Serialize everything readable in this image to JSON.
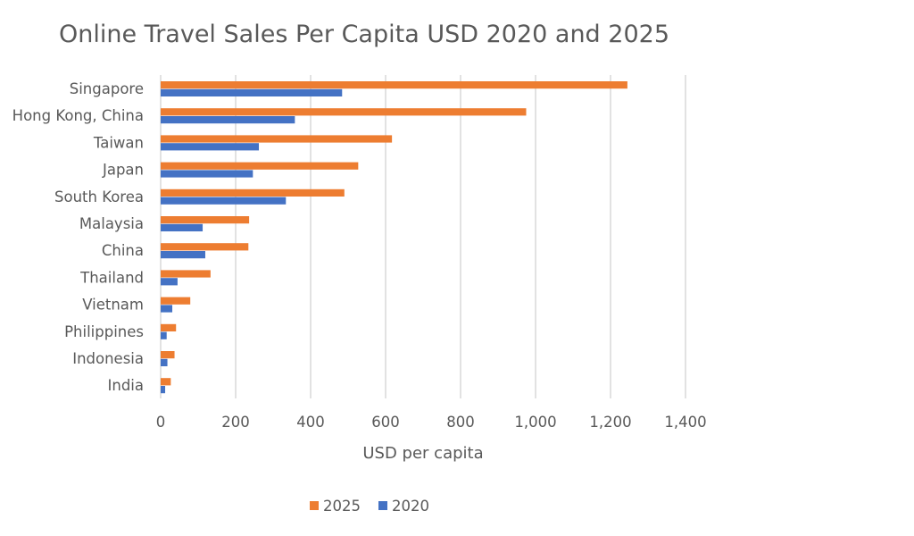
{
  "chart_data": {
    "type": "bar",
    "orientation": "horizontal",
    "title": "Online Travel Sales Per Capita USD 2020 and 2025",
    "xlabel": "USD per capita",
    "ylabel": "",
    "xlim": [
      0,
      1400
    ],
    "xticks": [
      "0",
      "200",
      "400",
      "600",
      "800",
      "1,000",
      "1,200",
      "1,400"
    ],
    "grid": true,
    "legend_position": "bottom",
    "categories": [
      "Singapore",
      "Hong Kong, China",
      "Taiwan",
      "Japan",
      "South Korea",
      "Malaysia",
      "China",
      "Thailand",
      "Vietnam",
      "Philippines",
      "Indonesia",
      "India"
    ],
    "series": [
      {
        "name": "2025",
        "color": "#ED7D31",
        "values": [
          1245,
          975,
          617,
          527,
          490,
          236,
          234,
          133,
          79,
          41,
          37,
          27
        ]
      },
      {
        "name": "2020",
        "color": "#4472C4",
        "values": [
          484,
          358,
          262,
          246,
          334,
          112,
          119,
          45,
          31,
          16,
          18,
          12
        ]
      }
    ]
  }
}
